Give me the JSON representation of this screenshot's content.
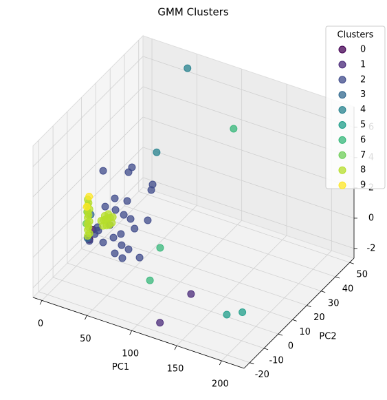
{
  "chart_data": {
    "type": "scatter3d",
    "title": "GMM Clusters",
    "xlabel": "PC1",
    "ylabel": "PC2",
    "legend_title": "Clusters",
    "legend": "upper right",
    "grid": true,
    "xlim": [
      -10,
      225
    ],
    "xticks": [
      0,
      50,
      100,
      150,
      200
    ],
    "ylim": [
      -24,
      53
    ],
    "yticks": [
      -20,
      -10,
      0,
      10,
      20,
      30,
      40,
      50
    ],
    "zlim": [
      -2.64,
      7.36
    ],
    "zticks": [
      -2,
      0,
      2,
      4,
      6
    ],
    "series": [
      {
        "name": "0",
        "color": "#440154",
        "x": [
          2,
          4
        ],
        "y": [
          8,
          9
        ],
        "z": [
          -1.6,
          -1.0
        ]
      },
      {
        "name": "1",
        "color": "#482878",
        "x": [
          125,
          127
        ],
        "y": [
          -20,
          0.5
        ],
        "z": [
          -2,
          -2
        ]
      },
      {
        "name": "2",
        "color": "#3e4989",
        "x": [
          17.2,
          49.3,
          45.5,
          72.3,
          70.8,
          30.2,
          44,
          19.5,
          31,
          40.2,
          47.8,
          66.9,
          52.2,
          24.7,
          37,
          11.8,
          28.7,
          17.2,
          37.8,
          45.5,
          30.2,
          38.6,
          57.8,
          7.8,
          1.9,
          11
        ],
        "y": [
          8,
          8,
          8,
          8,
          8,
          8,
          8,
          8,
          8,
          8,
          8,
          8,
          8,
          8,
          8,
          8,
          8,
          8,
          8,
          8,
          8,
          8,
          8,
          8,
          8,
          8
        ],
        "z": [
          3.24,
          4.11,
          3.71,
          3.43,
          3.04,
          1.68,
          1.78,
          0.92,
          0.93,
          0.79,
          0.67,
          0.96,
          0.12,
          -0.2,
          -0.54,
          -0.82,
          -0.94,
          -1.49,
          -1.26,
          -1.38,
          -1.95,
          -2.1,
          -1.68,
          -1.13,
          -1.7,
          -0.61
        ]
      },
      {
        "name": "3",
        "color": "#31688e",
        "x": [
          3,
          5
        ],
        "y": [
          6,
          7
        ],
        "z": [
          -1.3,
          0.2
        ]
      },
      {
        "name": "4",
        "color": "#26828e",
        "x": [
          100,
          80
        ],
        "y": [
          15,
          6
        ],
        "z": [
          11,
          5.9
        ]
      },
      {
        "name": "5",
        "color": "#1f9e89",
        "x": [
          174,
          185
        ],
        "y": [
          -4,
          0
        ],
        "z": [
          -2,
          -2
        ]
      },
      {
        "name": "6",
        "color": "#35b779",
        "x": [
          180,
          88,
          94
        ],
        "y": [
          -3,
          3.4,
          -7.5
        ],
        "z": [
          10.3,
          0,
          -1
        ]
      },
      {
        "name": "7",
        "color": "#6ece58",
        "x": [
          0,
          1
        ],
        "y": [
          7,
          7
        ],
        "z": [
          -0.5,
          0.3
        ]
      },
      {
        "name": "8",
        "color": "#b5de2b",
        "x": [
          0,
          0,
          0,
          0,
          0,
          0,
          0,
          1,
          1,
          1,
          2,
          2,
          2,
          15,
          18,
          20,
          22,
          25,
          17,
          21,
          24,
          27,
          19,
          23,
          28
        ],
        "y": [
          8,
          8,
          8,
          8,
          8,
          8,
          8,
          8,
          8,
          8,
          8,
          8,
          8,
          8,
          8,
          8,
          8,
          8,
          8,
          8,
          8,
          8,
          8,
          8,
          8
        ],
        "z": [
          1.0,
          0.6,
          0.2,
          -0.2,
          -0.6,
          -1.0,
          -1.4,
          0.8,
          0,
          -0.8,
          0.4,
          -0.4,
          -1.2,
          -0.1,
          0,
          0.1,
          0.2,
          0.3,
          -0.4,
          -0.3,
          -0.2,
          0,
          0.3,
          0.5,
          0.4
        ]
      },
      {
        "name": "9",
        "color": "#fde725",
        "x": [
          0,
          -1
        ],
        "y": [
          9,
          8
        ],
        "z": [
          1.1,
          0.5
        ]
      }
    ]
  }
}
